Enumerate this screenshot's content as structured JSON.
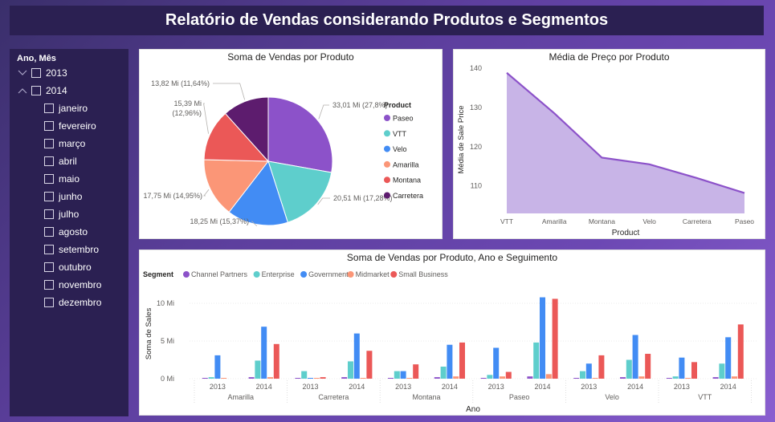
{
  "header": {
    "title": "Relatório de Vendas considerando Produtos e Segmentos"
  },
  "slicer": {
    "title": "Ano, Mês",
    "years": [
      {
        "label": "2013",
        "expanded": false
      },
      {
        "label": "2014",
        "expanded": true
      }
    ],
    "months": [
      "janeiro",
      "fevereiro",
      "março",
      "abril",
      "maio",
      "junho",
      "julho",
      "agosto",
      "setembro",
      "outubro",
      "novembro",
      "dezembro"
    ]
  },
  "pie": {
    "title": "Soma de Vendas por Produto",
    "legend_title": "Product",
    "chart_data": {
      "type": "pie",
      "slices": [
        {
          "label": "Paseo",
          "value": 33.01,
          "display": "33,01 Mi (27,8%)",
          "color": "#8C52C9"
        },
        {
          "label": "VTT",
          "value": 20.51,
          "display": "20,51 Mi (17,28%)",
          "color": "#5ECECC"
        },
        {
          "label": "Velo",
          "value": 18.25,
          "display": "18,25 Mi (15,37%)",
          "color": "#428CF4"
        },
        {
          "label": "Amarilla",
          "value": 17.75,
          "display": "17,75 Mi (14,95%)",
          "color": "#FB9677"
        },
        {
          "label": "Montana",
          "value": 15.39,
          "display": "15,39 Mi (12,96%)",
          "color": "#EB5857"
        },
        {
          "label": "Carretera",
          "value": 13.82,
          "display": "13,82 Mi (11,64%)",
          "color": "#5D1C6E"
        }
      ]
    }
  },
  "area": {
    "title": "Média de Preço por Produto",
    "chart_data": {
      "type": "area",
      "categories": [
        "VTT",
        "Amarilla",
        "Montana",
        "Velo",
        "Carretera",
        "Paseo"
      ],
      "values": [
        138.8,
        128.5,
        117.2,
        115.5,
        112.0,
        108.2
      ],
      "xlabel": "Product",
      "ylabel": "Média de Sale Price",
      "yticks": [
        110,
        120,
        130,
        140
      ],
      "ylim": [
        103,
        141
      ],
      "color": "#8C52C9",
      "fill": "#C8B4E7"
    }
  },
  "bars": {
    "title": "Soma de Vendas por Produto, Ano e Seguimento",
    "legend_title": "Segment",
    "chart_data": {
      "type": "bar",
      "xlabel": "Ano",
      "ylabel": "Soma de Sales",
      "yticks": [
        "0 Mi",
        "5 Mi",
        "10 Mi"
      ],
      "ylim": [
        0,
        11.5
      ],
      "products": [
        "Amarilla",
        "Carretera",
        "Montana",
        "Paseo",
        "Velo",
        "VTT"
      ],
      "years": [
        "2013",
        "2014"
      ],
      "series": [
        {
          "name": "Channel Partners",
          "color": "#8C52C9",
          "values": [
            [
              0.1,
              0.2
            ],
            [
              0.05,
              0.2
            ],
            [
              0.05,
              0.2
            ],
            [
              0.1,
              0.3
            ],
            [
              0.05,
              0.2
            ],
            [
              0.05,
              0.2
            ]
          ]
        },
        {
          "name": "Enterprise",
          "color": "#5ECECC",
          "values": [
            [
              0.2,
              2.4
            ],
            [
              1.0,
              2.3
            ],
            [
              1.0,
              1.6
            ],
            [
              0.5,
              4.8
            ],
            [
              1.0,
              2.5
            ],
            [
              0.3,
              2.0
            ]
          ]
        },
        {
          "name": "Government",
          "color": "#428CF4",
          "values": [
            [
              3.1,
              6.9
            ],
            [
              0.1,
              6.0
            ],
            [
              1.0,
              4.5
            ],
            [
              4.1,
              10.8
            ],
            [
              2.0,
              5.8
            ],
            [
              2.8,
              5.5
            ]
          ]
        },
        {
          "name": "Midmarket",
          "color": "#FB9677",
          "values": [
            [
              0.05,
              0.2
            ],
            [
              0.05,
              0.1
            ],
            [
              0.1,
              0.3
            ],
            [
              0.3,
              0.6
            ],
            [
              0.1,
              0.3
            ],
            [
              0.05,
              0.3
            ]
          ]
        },
        {
          "name": "Small Business",
          "color": "#EB5857",
          "values": [
            [
              0.0,
              4.6
            ],
            [
              0.2,
              3.7
            ],
            [
              1.9,
              4.8
            ],
            [
              0.9,
              10.6
            ],
            [
              3.1,
              3.3
            ],
            [
              2.2,
              7.2
            ]
          ]
        }
      ]
    }
  }
}
